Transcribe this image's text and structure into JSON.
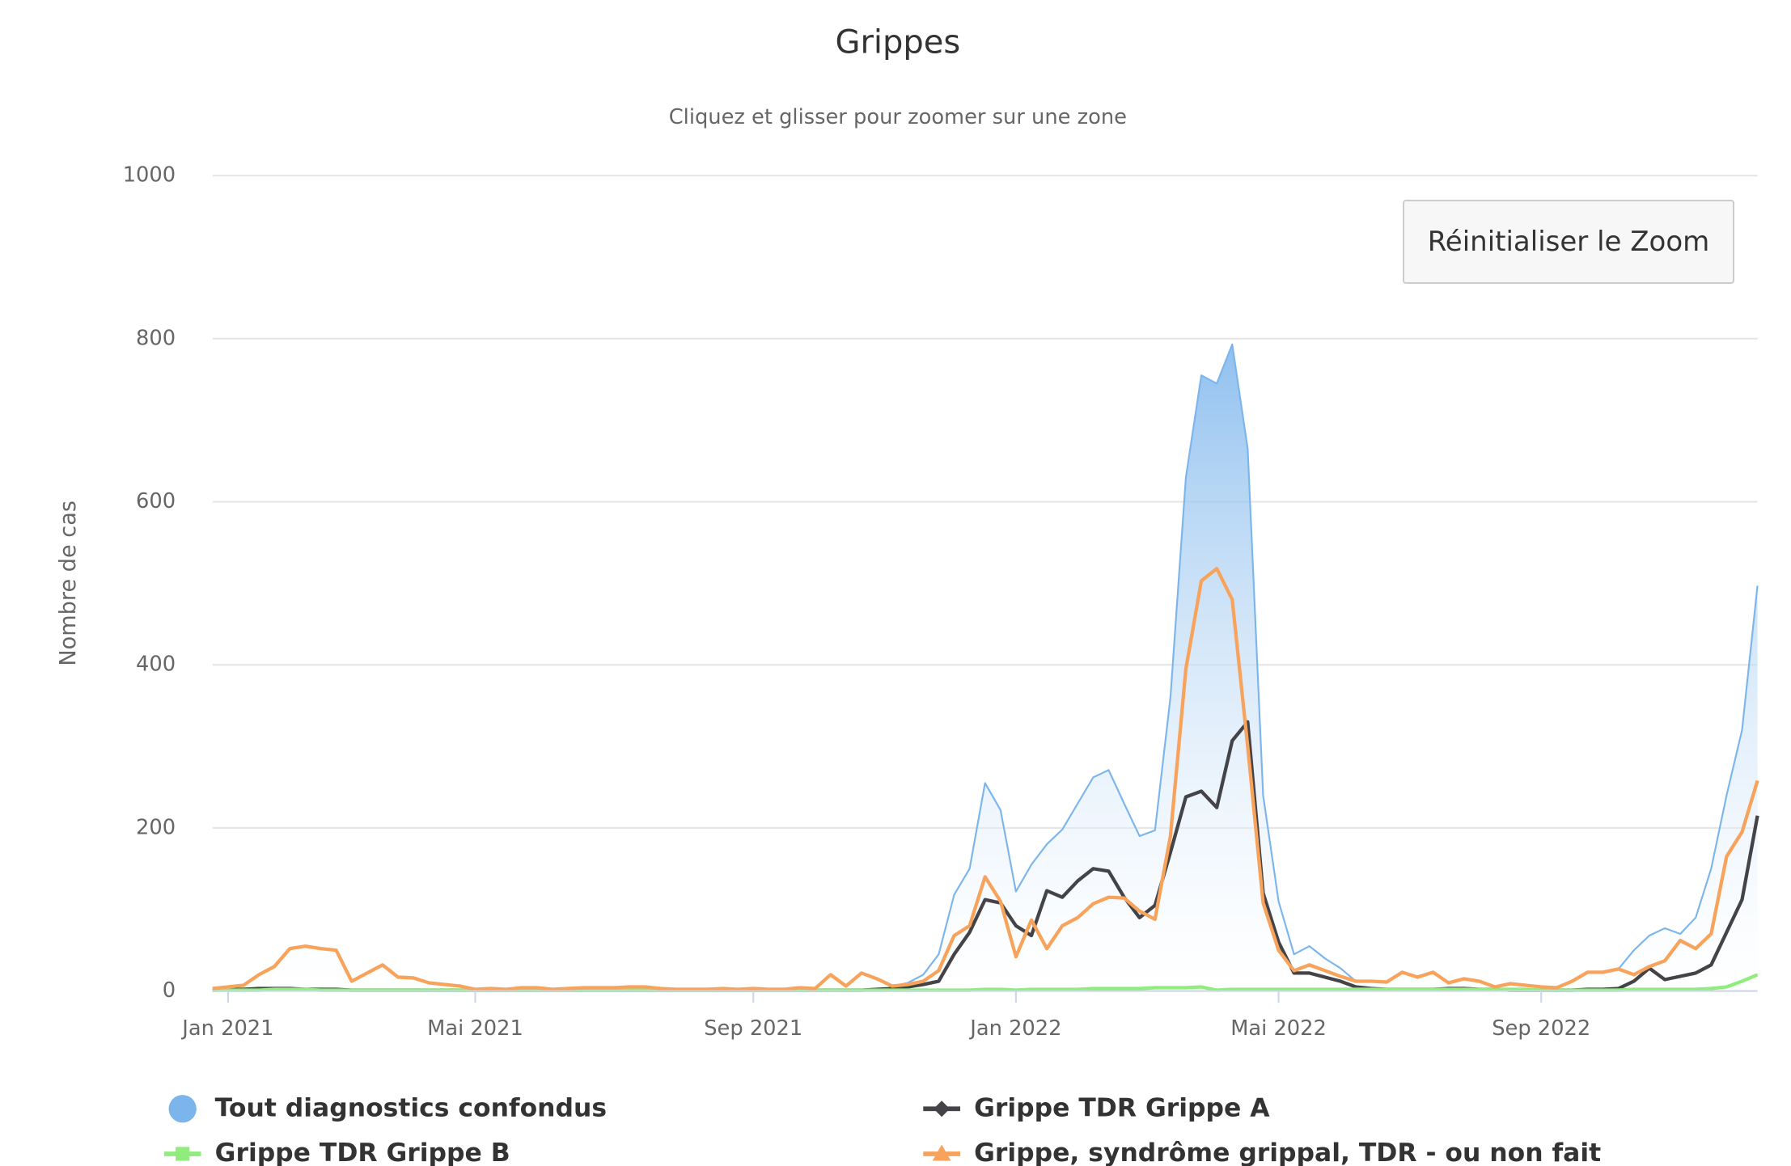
{
  "chart_data": {
    "type": "line",
    "title": "Grippes",
    "subtitle": "Cliquez et glisser pour zoomer sur une zone",
    "y_label": "Nombre de cas",
    "reset_button": "Réinitialiser le Zoom",
    "ylim": [
      0,
      1000
    ],
    "yticks": [
      0,
      200,
      400,
      600,
      800,
      1000
    ],
    "grid": true,
    "legend": "bottom",
    "categories": [
      null,
      "Jan 2021",
      null,
      null,
      null,
      null,
      null,
      null,
      null,
      null,
      null,
      null,
      null,
      null,
      null,
      null,
      null,
      "Mai 2021",
      null,
      null,
      null,
      null,
      null,
      null,
      null,
      null,
      null,
      null,
      null,
      null,
      null,
      null,
      null,
      null,
      null,
      "Sep 2021",
      null,
      null,
      null,
      null,
      null,
      null,
      null,
      null,
      null,
      null,
      null,
      null,
      null,
      null,
      null,
      null,
      "Jan 2022",
      null,
      null,
      null,
      null,
      null,
      null,
      null,
      null,
      null,
      null,
      null,
      null,
      null,
      null,
      null,
      null,
      "Mai 2022",
      null,
      null,
      null,
      null,
      null,
      null,
      null,
      null,
      null,
      null,
      null,
      null,
      null,
      null,
      null,
      null,
      "Sep 2022",
      null,
      null,
      null,
      null,
      null,
      null,
      null,
      null,
      null,
      null,
      null,
      null,
      null,
      null
    ],
    "series": [
      {
        "name": "Tout diagnostics confondus",
        "color": "#7cb5ec",
        "area": true,
        "symbol": "circle",
        "values": [
          3,
          5,
          7,
          20,
          30,
          52,
          55,
          52,
          50,
          12,
          22,
          32,
          17,
          16,
          10,
          8,
          6,
          2,
          3,
          2,
          4,
          4,
          2,
          3,
          4,
          4,
          4,
          5,
          5,
          3,
          2,
          2,
          2,
          3,
          2,
          3,
          2,
          2,
          4,
          3,
          20,
          6,
          22,
          15,
          6,
          10,
          20,
          45,
          118,
          150,
          255,
          222,
          122,
          155,
          180,
          198,
          230,
          262,
          271,
          230,
          190,
          197,
          360,
          630,
          755,
          745,
          793,
          665,
          240,
          110,
          45,
          55,
          40,
          28,
          12,
          12,
          11,
          23,
          17,
          23,
          10,
          15,
          12,
          5,
          9,
          7,
          5,
          4,
          12,
          23,
          23,
          27,
          50,
          68,
          77,
          70,
          90,
          150,
          240,
          320,
          497
        ]
      },
      {
        "name": "Grippe TDR Grippe A",
        "color": "#434348",
        "area": false,
        "symbol": "diamond",
        "values": [
          1,
          2,
          2,
          3,
          3,
          3,
          2,
          2,
          2,
          1,
          1,
          1,
          1,
          1,
          1,
          1,
          1,
          1,
          1,
          1,
          1,
          1,
          1,
          1,
          1,
          1,
          1,
          1,
          1,
          1,
          1,
          1,
          1,
          1,
          1,
          1,
          1,
          1,
          1,
          1,
          1,
          1,
          1,
          2,
          3,
          5,
          8,
          12,
          45,
          72,
          112,
          108,
          80,
          68,
          123,
          115,
          135,
          150,
          147,
          115,
          90,
          105,
          170,
          238,
          245,
          225,
          307,
          330,
          120,
          60,
          22,
          22,
          17,
          12,
          5,
          3,
          2,
          2,
          2,
          2,
          3,
          3,
          2,
          2,
          1,
          1,
          1,
          1,
          1,
          2,
          2,
          3,
          12,
          28,
          14,
          18,
          22,
          32,
          72,
          112,
          215
        ]
      },
      {
        "name": "Grippe TDR Grippe B",
        "color": "#90ed7d",
        "area": false,
        "symbol": "square",
        "values": [
          1,
          1,
          1,
          1,
          2,
          2,
          2,
          1,
          1,
          1,
          1,
          1,
          1,
          1,
          1,
          1,
          1,
          1,
          1,
          1,
          1,
          1,
          1,
          1,
          1,
          1,
          1,
          1,
          1,
          1,
          1,
          1,
          1,
          1,
          1,
          1,
          1,
          1,
          1,
          1,
          1,
          1,
          1,
          1,
          1,
          1,
          1,
          1,
          1,
          1,
          2,
          2,
          1,
          2,
          2,
          2,
          2,
          3,
          3,
          3,
          3,
          4,
          4,
          4,
          5,
          1,
          2,
          2,
          2,
          2,
          2,
          2,
          2,
          2,
          2,
          2,
          2,
          2,
          2,
          2,
          2,
          2,
          2,
          2,
          2,
          2,
          1,
          1,
          1,
          1,
          1,
          1,
          2,
          2,
          2,
          2,
          2,
          3,
          5,
          12,
          20
        ]
      },
      {
        "name": "Grippe, syndrôme grippal, TDR - ou non fait",
        "color": "#f7a35c",
        "area": false,
        "symbol": "triangle",
        "values": [
          3,
          5,
          7,
          20,
          30,
          52,
          55,
          52,
          50,
          12,
          22,
          32,
          17,
          16,
          10,
          8,
          6,
          2,
          3,
          2,
          4,
          4,
          2,
          3,
          4,
          4,
          4,
          5,
          5,
          3,
          2,
          2,
          2,
          3,
          2,
          3,
          2,
          2,
          4,
          3,
          20,
          6,
          22,
          15,
          6,
          8,
          12,
          25,
          68,
          80,
          140,
          110,
          42,
          87,
          52,
          80,
          90,
          107,
          115,
          114,
          98,
          88,
          190,
          395,
          503,
          518,
          480,
          300,
          108,
          50,
          25,
          32,
          25,
          18,
          12,
          12,
          11,
          23,
          17,
          23,
          10,
          15,
          12,
          5,
          9,
          7,
          5,
          4,
          12,
          23,
          23,
          27,
          20,
          30,
          37,
          62,
          52,
          70,
          165,
          195,
          258
        ]
      }
    ]
  }
}
